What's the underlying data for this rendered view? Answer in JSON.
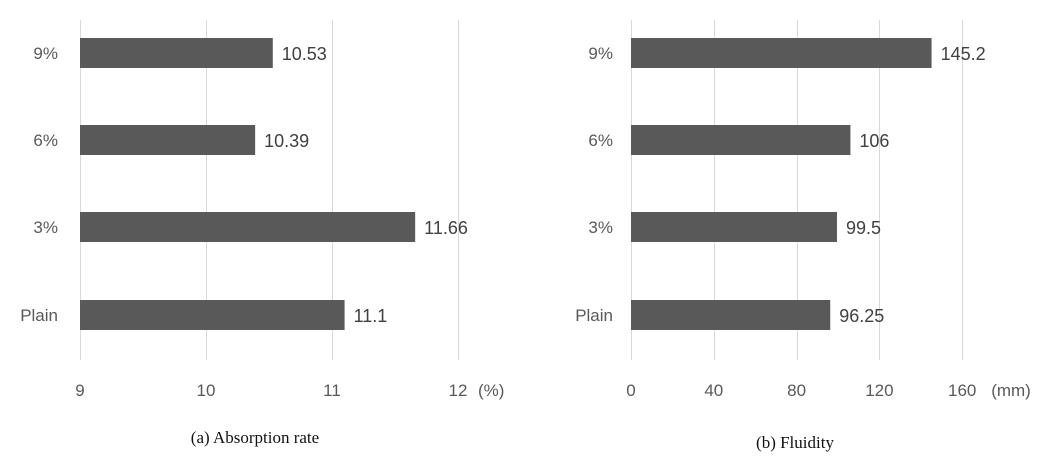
{
  "chart_data": [
    {
      "type": "bar",
      "orientation": "horizontal",
      "caption": "(a) Absorption rate",
      "categories": [
        "Plain",
        "3%",
        "6%",
        "9%"
      ],
      "values": [
        11.1,
        11.66,
        10.39,
        10.53
      ],
      "value_labels": [
        "11.1",
        "11.66",
        "10.39",
        "10.53"
      ],
      "xlim": [
        9,
        12
      ],
      "xticks": [
        9,
        10,
        11,
        12
      ],
      "xunit": "(%)",
      "grid": true,
      "bar_color": "#595959"
    },
    {
      "type": "bar",
      "orientation": "horizontal",
      "caption": "(b) Fluidity",
      "categories": [
        "Plain",
        "3%",
        "6%",
        "9%"
      ],
      "values": [
        96.25,
        99.5,
        106,
        145.2
      ],
      "value_labels": [
        "96.25",
        "99.5",
        "106",
        "145.2"
      ],
      "xlim": [
        0,
        200
      ],
      "xticks": [
        0,
        40,
        80,
        120,
        160
      ],
      "xunit": "(mm)",
      "grid": true,
      "bar_color": "#595959"
    }
  ]
}
